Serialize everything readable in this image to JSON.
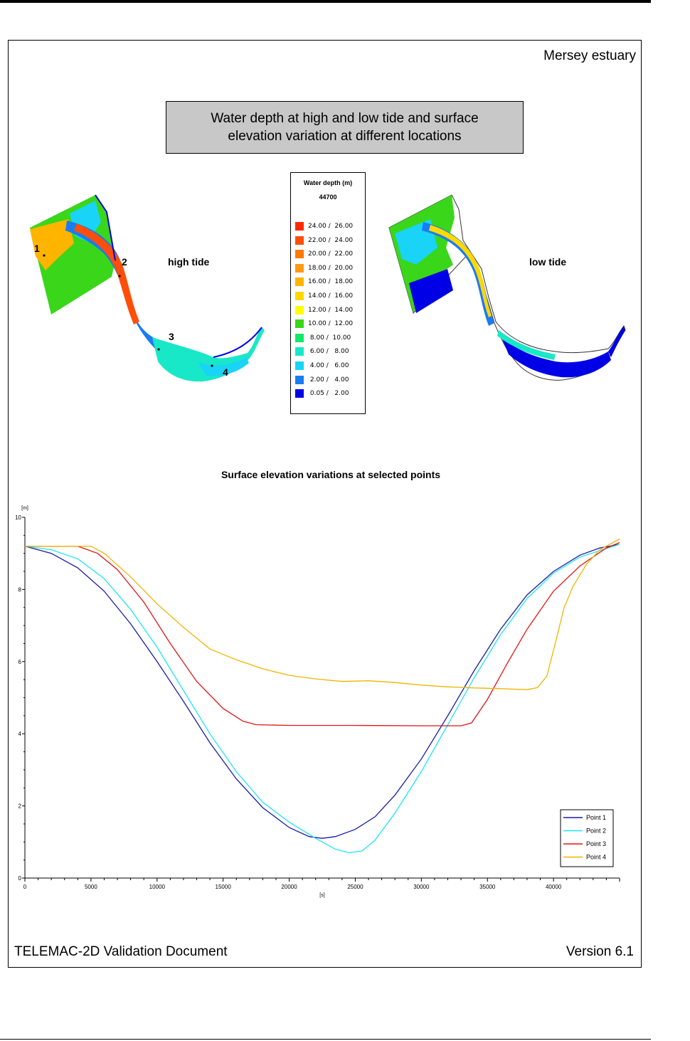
{
  "header": {
    "case_title": "Mersey estuary"
  },
  "banner": {
    "line1": "Water depth at high and low tide and surface",
    "line2": "elevation variation at different locations"
  },
  "legend": {
    "title": "Water depth (m)",
    "time": "44700",
    "ranges": [
      {
        "label": "24.00 /  26.00",
        "color": "#ff2a00"
      },
      {
        "label": "22.00 /  24.00",
        "color": "#ff4e0a"
      },
      {
        "label": "20.00 /  22.00",
        "color": "#ff7a00"
      },
      {
        "label": "18.00 /  20.00",
        "color": "#ff9a14"
      },
      {
        "label": "16.00 /  18.00",
        "color": "#ffb400"
      },
      {
        "label": "14.00 /  16.00",
        "color": "#ffd800"
      },
      {
        "label": "12.00 /  14.00",
        "color": "#ffff00"
      },
      {
        "label": "10.00 /  12.00",
        "color": "#3ad61a"
      },
      {
        "label": " 8.00 /  10.00",
        "color": "#11e866"
      },
      {
        "label": " 6.00 /   8.00",
        "color": "#18e8c8"
      },
      {
        "label": " 4.00 /   6.00",
        "color": "#19d4f6"
      },
      {
        "label": " 2.00 /   4.00",
        "color": "#1a7cf2"
      },
      {
        "label": " 0.05 /   2.00",
        "color": "#0000e6"
      }
    ]
  },
  "maps": {
    "high_caption": "high tide",
    "low_caption": "low tide",
    "point_labels": [
      "1",
      "2",
      "3",
      "4"
    ]
  },
  "chart_title": "Surface elevation variations at selected points",
  "chart_data": {
    "type": "line",
    "title": "Surface elevation variations at selected points",
    "xlabel": "[s]",
    "ylabel": "[m]",
    "xlim": [
      0,
      45000
    ],
    "ylim": [
      0,
      10
    ],
    "x_ticks": [
      0,
      5000,
      10000,
      15000,
      20000,
      25000,
      30000,
      35000,
      40000
    ],
    "y_ticks": [
      0,
      2,
      4,
      6,
      8,
      10
    ],
    "grid": false,
    "legend_position": "bottom-right",
    "series": [
      {
        "name": "Point 1",
        "color": "#1a1aa8",
        "points": [
          [
            0,
            9.2
          ],
          [
            2000,
            9.0
          ],
          [
            4000,
            8.6
          ],
          [
            6000,
            7.95
          ],
          [
            8000,
            7.05
          ],
          [
            10000,
            6.0
          ],
          [
            12000,
            4.9
          ],
          [
            14000,
            3.75
          ],
          [
            16000,
            2.75
          ],
          [
            18000,
            1.95
          ],
          [
            20000,
            1.4
          ],
          [
            21500,
            1.15
          ],
          [
            22500,
            1.1
          ],
          [
            23500,
            1.15
          ],
          [
            25000,
            1.35
          ],
          [
            26500,
            1.7
          ],
          [
            28000,
            2.3
          ],
          [
            30000,
            3.3
          ],
          [
            32000,
            4.5
          ],
          [
            34000,
            5.75
          ],
          [
            36000,
            6.9
          ],
          [
            38000,
            7.85
          ],
          [
            40000,
            8.5
          ],
          [
            42000,
            8.95
          ],
          [
            43500,
            9.15
          ],
          [
            45000,
            9.25
          ]
        ]
      },
      {
        "name": "Point 2",
        "color": "#1fe6ee",
        "points": [
          [
            0,
            9.2
          ],
          [
            2000,
            9.1
          ],
          [
            4000,
            8.85
          ],
          [
            6000,
            8.3
          ],
          [
            8000,
            7.45
          ],
          [
            10000,
            6.4
          ],
          [
            12000,
            5.2
          ],
          [
            14000,
            4.0
          ],
          [
            16000,
            2.95
          ],
          [
            18000,
            2.1
          ],
          [
            20000,
            1.55
          ],
          [
            22000,
            1.1
          ],
          [
            23500,
            0.8
          ],
          [
            24500,
            0.7
          ],
          [
            25500,
            0.75
          ],
          [
            26500,
            1.05
          ],
          [
            28000,
            1.8
          ],
          [
            30000,
            2.95
          ],
          [
            32000,
            4.25
          ],
          [
            34000,
            5.55
          ],
          [
            36000,
            6.75
          ],
          [
            38000,
            7.75
          ],
          [
            40000,
            8.45
          ],
          [
            42000,
            8.9
          ],
          [
            45000,
            9.25
          ]
        ]
      },
      {
        "name": "Point 3",
        "color": "#e01616",
        "points": [
          [
            0,
            9.2
          ],
          [
            4000,
            9.2
          ],
          [
            5500,
            9.0
          ],
          [
            7000,
            8.55
          ],
          [
            9000,
            7.65
          ],
          [
            11000,
            6.5
          ],
          [
            13000,
            5.45
          ],
          [
            15000,
            4.7
          ],
          [
            16500,
            4.35
          ],
          [
            17500,
            4.25
          ],
          [
            20000,
            4.23
          ],
          [
            25000,
            4.23
          ],
          [
            30000,
            4.22
          ],
          [
            33000,
            4.22
          ],
          [
            33800,
            4.3
          ],
          [
            35000,
            4.95
          ],
          [
            36500,
            5.95
          ],
          [
            38000,
            6.9
          ],
          [
            40000,
            7.95
          ],
          [
            42000,
            8.65
          ],
          [
            44000,
            9.15
          ],
          [
            45000,
            9.3
          ]
        ]
      },
      {
        "name": "Point 4",
        "color": "#f0b400",
        "points": [
          [
            0,
            9.2
          ],
          [
            5000,
            9.2
          ],
          [
            6000,
            9.0
          ],
          [
            8000,
            8.35
          ],
          [
            10000,
            7.6
          ],
          [
            12000,
            6.95
          ],
          [
            14000,
            6.35
          ],
          [
            16000,
            6.05
          ],
          [
            18000,
            5.8
          ],
          [
            20000,
            5.62
          ],
          [
            22000,
            5.52
          ],
          [
            24000,
            5.45
          ],
          [
            26000,
            5.47
          ],
          [
            28000,
            5.42
          ],
          [
            30000,
            5.35
          ],
          [
            32000,
            5.3
          ],
          [
            34000,
            5.27
          ],
          [
            36000,
            5.25
          ],
          [
            38000,
            5.22
          ],
          [
            38800,
            5.28
          ],
          [
            39500,
            5.6
          ],
          [
            40200,
            6.6
          ],
          [
            40800,
            7.5
          ],
          [
            41500,
            8.1
          ],
          [
            42500,
            8.7
          ],
          [
            43500,
            9.1
          ],
          [
            44500,
            9.3
          ],
          [
            45000,
            9.4
          ]
        ]
      }
    ]
  },
  "footer": {
    "left": "TELEMAC-2D Validation Document",
    "right": "Version 6.1"
  }
}
